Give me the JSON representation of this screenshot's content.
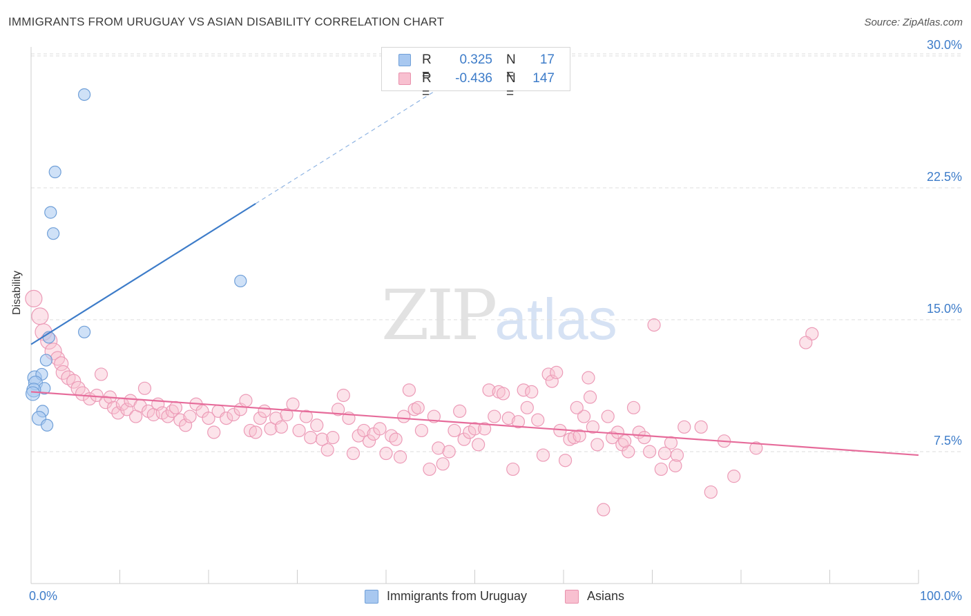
{
  "header": {
    "title": "IMMIGRANTS FROM URUGUAY VS ASIAN DISABILITY CORRELATION CHART",
    "source": "Source: ZipAtlas.com"
  },
  "watermark": {
    "zip": "ZIP",
    "atlas": "atlas"
  },
  "legend": {
    "rows": [
      {
        "r_label": "R =",
        "r_value": "0.325",
        "n_label": "N =",
        "n_value": "17",
        "color": "#a8c8f0",
        "border": "#6f9fd8"
      },
      {
        "r_label": "R =",
        "r_value": "-0.436",
        "n_label": "N =",
        "n_value": "147",
        "color": "#f8c0d0",
        "border": "#e890ac"
      }
    ]
  },
  "bottom_legend": {
    "series1": "Immigrants from Uruguay",
    "series2": "Asians"
  },
  "chart_data": {
    "type": "scatter",
    "title": "IMMIGRANTS FROM URUGUAY VS ASIAN DISABILITY CORRELATION CHART",
    "xlabel": "",
    "ylabel": "Disability",
    "x_tick_labels": [
      "0.0%",
      "100.0%"
    ],
    "y_tick_labels": [
      "7.5%",
      "15.0%",
      "22.5%",
      "30.0%"
    ],
    "y_ticks": [
      7.5,
      15.0,
      22.5,
      30.0
    ],
    "xlim": [
      0,
      100
    ],
    "ylim": [
      0,
      32
    ],
    "grid": true,
    "legend_position": "top-center",
    "colors": {
      "series1": "#3d7cc9",
      "series1_fill": "#a8c8f0",
      "series2": "#e66b9a",
      "series2_fill": "#f8c0d0",
      "axis_text": "#3d7cc9"
    },
    "series": [
      {
        "name": "Immigrants from Uruguay",
        "trend": {
          "x": [
            0,
            25.3
          ],
          "y": [
            13.6,
            21.6
          ],
          "dashed_to": [
            45.5,
            28.0
          ]
        },
        "points": [
          [
            6.0,
            27.8
          ],
          [
            2.7,
            23.4
          ],
          [
            2.2,
            21.1
          ],
          [
            2.5,
            19.9
          ],
          [
            23.6,
            17.2
          ],
          [
            6.0,
            14.3
          ],
          [
            2.0,
            14.0
          ],
          [
            1.7,
            12.7
          ],
          [
            0.4,
            11.7
          ],
          [
            1.2,
            11.9
          ],
          [
            0.5,
            11.4
          ],
          [
            1.5,
            11.1
          ],
          [
            0.3,
            11.0
          ],
          [
            0.2,
            10.8
          ],
          [
            1.3,
            9.8
          ],
          [
            0.9,
            9.4
          ],
          [
            1.8,
            9.0
          ]
        ]
      },
      {
        "name": "Asians",
        "trend": {
          "x": [
            0,
            100
          ],
          "y": [
            10.9,
            7.3
          ]
        },
        "points": [
          [
            0.3,
            16.2
          ],
          [
            1.0,
            15.2
          ],
          [
            1.4,
            14.3
          ],
          [
            2.0,
            13.8
          ],
          [
            2.5,
            13.2
          ],
          [
            3.0,
            12.8
          ],
          [
            3.4,
            12.5
          ],
          [
            3.6,
            12.0
          ],
          [
            4.2,
            11.7
          ],
          [
            4.8,
            11.5
          ],
          [
            5.3,
            11.1
          ],
          [
            5.8,
            10.8
          ],
          [
            6.6,
            10.5
          ],
          [
            7.4,
            10.7
          ],
          [
            7.9,
            11.9
          ],
          [
            8.4,
            10.3
          ],
          [
            8.9,
            10.6
          ],
          [
            9.3,
            10.0
          ],
          [
            9.8,
            9.7
          ],
          [
            10.3,
            10.2
          ],
          [
            10.8,
            9.9
          ],
          [
            11.2,
            10.4
          ],
          [
            11.8,
            9.5
          ],
          [
            12.3,
            10.1
          ],
          [
            12.8,
            11.1
          ],
          [
            13.2,
            9.8
          ],
          [
            13.8,
            9.6
          ],
          [
            14.3,
            10.2
          ],
          [
            14.8,
            9.7
          ],
          [
            15.4,
            9.5
          ],
          [
            15.9,
            9.8
          ],
          [
            16.3,
            10.0
          ],
          [
            16.8,
            9.3
          ],
          [
            17.4,
            9.0
          ],
          [
            17.9,
            9.5
          ],
          [
            18.6,
            10.2
          ],
          [
            19.3,
            9.8
          ],
          [
            20.0,
            9.4
          ],
          [
            20.6,
            8.6
          ],
          [
            21.1,
            9.8
          ],
          [
            22.0,
            9.4
          ],
          [
            22.8,
            9.6
          ],
          [
            23.6,
            9.9
          ],
          [
            24.2,
            10.4
          ],
          [
            24.7,
            8.7
          ],
          [
            25.3,
            8.6
          ],
          [
            25.8,
            9.4
          ],
          [
            26.3,
            9.8
          ],
          [
            27.0,
            8.8
          ],
          [
            27.6,
            9.4
          ],
          [
            28.2,
            8.9
          ],
          [
            28.8,
            9.6
          ],
          [
            29.5,
            10.2
          ],
          [
            30.2,
            8.7
          ],
          [
            31.0,
            9.5
          ],
          [
            31.5,
            8.3
          ],
          [
            32.2,
            9.0
          ],
          [
            32.8,
            8.2
          ],
          [
            33.4,
            7.6
          ],
          [
            34.0,
            8.3
          ],
          [
            34.6,
            9.9
          ],
          [
            35.2,
            10.7
          ],
          [
            35.8,
            9.4
          ],
          [
            36.3,
            7.4
          ],
          [
            36.9,
            8.4
          ],
          [
            37.5,
            8.7
          ],
          [
            38.1,
            8.1
          ],
          [
            38.6,
            8.5
          ],
          [
            39.3,
            8.8
          ],
          [
            40.0,
            7.4
          ],
          [
            40.6,
            8.4
          ],
          [
            41.1,
            8.2
          ],
          [
            41.6,
            7.2
          ],
          [
            42.0,
            9.5
          ],
          [
            42.6,
            11.0
          ],
          [
            43.2,
            9.9
          ],
          [
            43.6,
            10.0
          ],
          [
            44.0,
            8.7
          ],
          [
            44.9,
            6.5
          ],
          [
            45.4,
            9.5
          ],
          [
            45.9,
            7.7
          ],
          [
            46.4,
            6.8
          ],
          [
            47.1,
            7.5
          ],
          [
            47.7,
            8.7
          ],
          [
            48.3,
            9.8
          ],
          [
            48.8,
            8.2
          ],
          [
            49.4,
            8.6
          ],
          [
            50.0,
            8.8
          ],
          [
            50.4,
            7.9
          ],
          [
            51.1,
            8.8
          ],
          [
            51.6,
            11.0
          ],
          [
            52.2,
            9.5
          ],
          [
            52.7,
            10.9
          ],
          [
            53.2,
            10.8
          ],
          [
            53.8,
            9.4
          ],
          [
            54.3,
            6.5
          ],
          [
            54.9,
            9.2
          ],
          [
            55.5,
            11.0
          ],
          [
            55.9,
            10.0
          ],
          [
            56.4,
            10.9
          ],
          [
            57.1,
            9.3
          ],
          [
            57.7,
            7.3
          ],
          [
            58.3,
            11.9
          ],
          [
            58.7,
            11.5
          ],
          [
            59.2,
            12.0
          ],
          [
            59.6,
            8.7
          ],
          [
            60.2,
            7.0
          ],
          [
            60.7,
            8.2
          ],
          [
            61.2,
            8.3
          ],
          [
            61.8,
            8.4
          ],
          [
            62.3,
            9.5
          ],
          [
            62.8,
            11.7
          ],
          [
            63.3,
            8.9
          ],
          [
            63.8,
            7.9
          ],
          [
            64.5,
            4.2
          ],
          [
            65.0,
            9.5
          ],
          [
            65.5,
            8.3
          ],
          [
            66.1,
            8.6
          ],
          [
            66.6,
            7.9
          ],
          [
            67.3,
            7.5
          ],
          [
            67.9,
            10.0
          ],
          [
            68.5,
            8.6
          ],
          [
            69.1,
            8.3
          ],
          [
            69.7,
            7.5
          ],
          [
            70.2,
            14.7
          ],
          [
            71.0,
            6.5
          ],
          [
            71.4,
            7.4
          ],
          [
            72.1,
            8.0
          ],
          [
            72.6,
            6.7
          ],
          [
            72.8,
            7.3
          ],
          [
            73.6,
            8.9
          ],
          [
            75.5,
            8.9
          ],
          [
            76.6,
            5.2
          ],
          [
            78.1,
            8.1
          ],
          [
            79.2,
            6.1
          ],
          [
            81.7,
            7.7
          ],
          [
            88.0,
            14.2
          ],
          [
            87.3,
            13.7
          ],
          [
            66.9,
            8.1
          ],
          [
            63.0,
            10.6
          ],
          [
            61.5,
            10.0
          ]
        ]
      }
    ]
  }
}
